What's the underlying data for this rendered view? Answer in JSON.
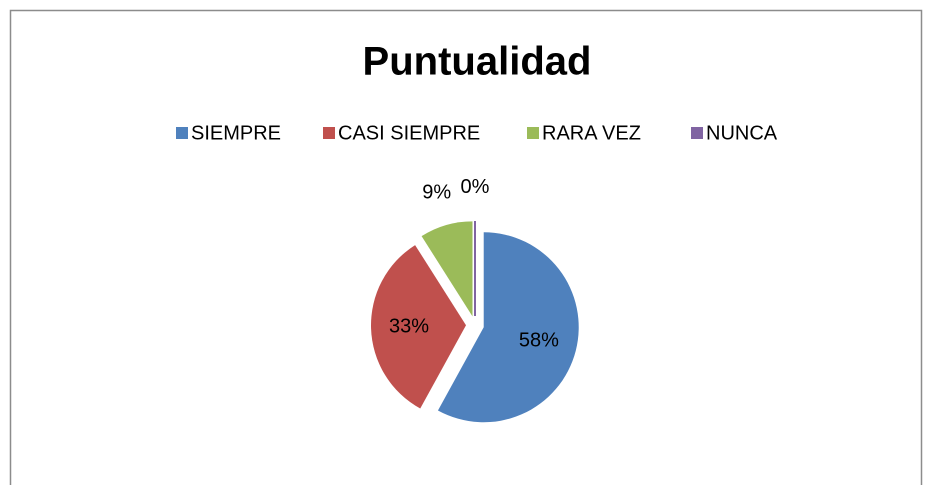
{
  "chart_data": {
    "type": "pie",
    "title": "Puntualidad",
    "categories": [
      "SIEMPRE",
      "CASI SIEMPRE",
      "RARA VEZ",
      "NUNCA"
    ],
    "values": [
      58,
      33,
      9,
      0
    ],
    "value_labels": [
      "58%",
      "33%",
      "9%",
      "0%"
    ],
    "colors": [
      "#4f81bd",
      "#c0504d",
      "#9bbb59",
      "#8064a2"
    ],
    "legend": "top"
  }
}
